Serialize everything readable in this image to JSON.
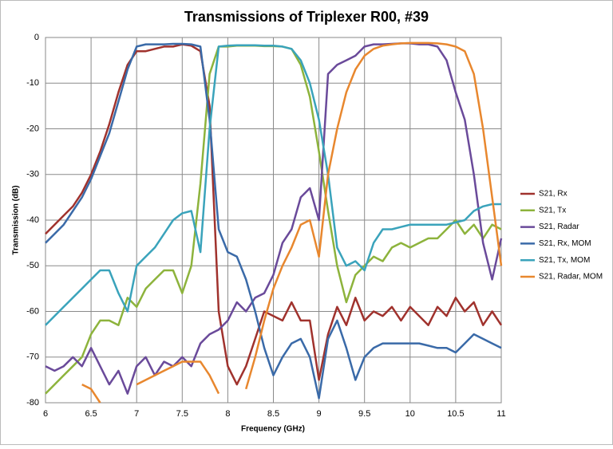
{
  "chart_data": {
    "type": "line",
    "title": "Transmissions of Triplexer R00, #39",
    "x_label": "Frequency (GHz)",
    "y_label": "Transmission (dB)",
    "x": [
      6.0,
      6.1,
      6.2,
      6.3,
      6.4,
      6.5,
      6.6,
      6.7,
      6.8,
      6.9,
      7.0,
      7.1,
      7.2,
      7.3,
      7.4,
      7.5,
      7.6,
      7.7,
      7.8,
      7.9,
      8.0,
      8.1,
      8.2,
      8.3,
      8.4,
      8.5,
      8.6,
      8.7,
      8.8,
      8.9,
      9.0,
      9.1,
      9.2,
      9.3,
      9.4,
      9.5,
      9.6,
      9.7,
      9.8,
      9.9,
      10.0,
      10.1,
      10.2,
      10.3,
      10.4,
      10.5,
      10.6,
      10.7,
      10.8,
      10.9,
      11.0
    ],
    "series": [
      {
        "name": "S21, Rx",
        "color": "#a0322d",
        "values": [
          -43,
          -41,
          -39,
          -37,
          -34,
          -30,
          -25,
          -19,
          -12,
          -6,
          -3,
          -3,
          -2.5,
          -2,
          -2,
          -1.5,
          -1.8,
          -3,
          -15,
          -60,
          -72,
          -76,
          -72,
          -66,
          -60,
          -61,
          -62,
          -58,
          -62,
          -62,
          -75,
          -65,
          -59,
          -63,
          -57,
          -62,
          -60,
          -61,
          -59,
          -62,
          -59,
          -61,
          -63,
          -59,
          -61,
          -57,
          -60,
          -58,
          -63,
          -60,
          -63
        ]
      },
      {
        "name": "S21, Tx",
        "color": "#8db33c",
        "values": [
          -78,
          -76,
          -74,
          -72,
          -70,
          -65,
          -62,
          -62,
          -63,
          -57,
          -59,
          -55,
          -53,
          -51,
          -51,
          -56,
          -50,
          -32,
          -8,
          -2,
          -2,
          -1.8,
          -1.8,
          -1.8,
          -1.9,
          -1.9,
          -2,
          -2.5,
          -6,
          -13,
          -25,
          -38,
          -50,
          -58,
          -52,
          -50,
          -48,
          -49,
          -46,
          -45,
          -46,
          -45,
          -44,
          -44,
          -42,
          -40,
          -43,
          -41,
          -44,
          -41,
          -42
        ]
      },
      {
        "name": "S21, Radar",
        "color": "#6a4a9a",
        "values": [
          -72,
          -73,
          -72,
          -70,
          -72,
          -68,
          -72,
          -76,
          -73,
          -78,
          -72,
          -70,
          -74,
          -71,
          -72,
          -70,
          -72,
          -67,
          -65,
          -64,
          -62,
          -58,
          -60,
          -57,
          -56,
          -52,
          -45,
          -42,
          -35,
          -33,
          -40,
          -8,
          -6,
          -5,
          -4,
          -2,
          -1.5,
          -1.5,
          -1.4,
          -1.3,
          -1.3,
          -1.5,
          -1.5,
          -2,
          -5,
          -12,
          -18,
          -30,
          -45,
          -53,
          -44
        ]
      },
      {
        "name": "S21, Rx, MOM",
        "color": "#3a6aa8",
        "values": [
          -45,
          -43,
          -41,
          -38,
          -35,
          -31,
          -26,
          -21,
          -14,
          -7,
          -2,
          -1.5,
          -1.5,
          -1.5,
          -1.4,
          -1.4,
          -1.5,
          -2,
          -18,
          -42,
          -47,
          -48,
          -53,
          -60,
          -68,
          -74,
          -70,
          -67,
          -66,
          -70,
          -79,
          -66,
          -62,
          -68,
          -75,
          -70,
          -68,
          -67,
          -67,
          -67,
          -67,
          -67,
          -67.5,
          -68,
          -68,
          -69,
          -67,
          -65,
          -66,
          -67,
          -68
        ]
      },
      {
        "name": "S21, Tx, MOM",
        "color": "#3aa3bb",
        "values": [
          -63,
          -61,
          -59,
          -57,
          -55,
          -53,
          -51,
          -51,
          -56,
          -60,
          -50,
          -48,
          -46,
          -43,
          -40,
          -38.5,
          -38,
          -47,
          -20,
          -2,
          -1.8,
          -1.7,
          -1.7,
          -1.7,
          -1.8,
          -1.8,
          -2,
          -2.5,
          -5,
          -10,
          -18,
          -30,
          -46,
          -50,
          -49,
          -51,
          -45,
          -42,
          -42,
          -41.5,
          -41,
          -41,
          -41,
          -41,
          -41,
          -40.5,
          -40,
          -38,
          -37,
          -36.5,
          -36.5
        ]
      },
      {
        "name": "S21, Radar, MOM",
        "color": "#e8872e",
        "values": [
          null,
          null,
          null,
          null,
          -76,
          -77,
          -80,
          null,
          null,
          null,
          -76,
          -75,
          -74,
          -73,
          -72,
          -71,
          -71,
          -71,
          -74,
          -78,
          null,
          null,
          -77,
          -70,
          -62,
          -55,
          -50,
          -46,
          -41,
          -40,
          -48,
          -30,
          -20,
          -12,
          -7,
          -4,
          -2.5,
          -1.8,
          -1.5,
          -1.3,
          -1.2,
          -1.2,
          -1.2,
          -1.3,
          -1.5,
          -2,
          -3,
          -8,
          -20,
          -35,
          -50
        ]
      }
    ],
    "xlim": [
      6,
      11
    ],
    "xticks": [
      6,
      6.5,
      7,
      7.5,
      8,
      8.5,
      9,
      9.5,
      10,
      10.5,
      11
    ],
    "ylim": [
      -80,
      0
    ],
    "yticks": [
      -80,
      -70,
      -60,
      -50,
      -40,
      -30,
      -20,
      -10,
      0
    ],
    "grid": true,
    "legend": "right"
  }
}
